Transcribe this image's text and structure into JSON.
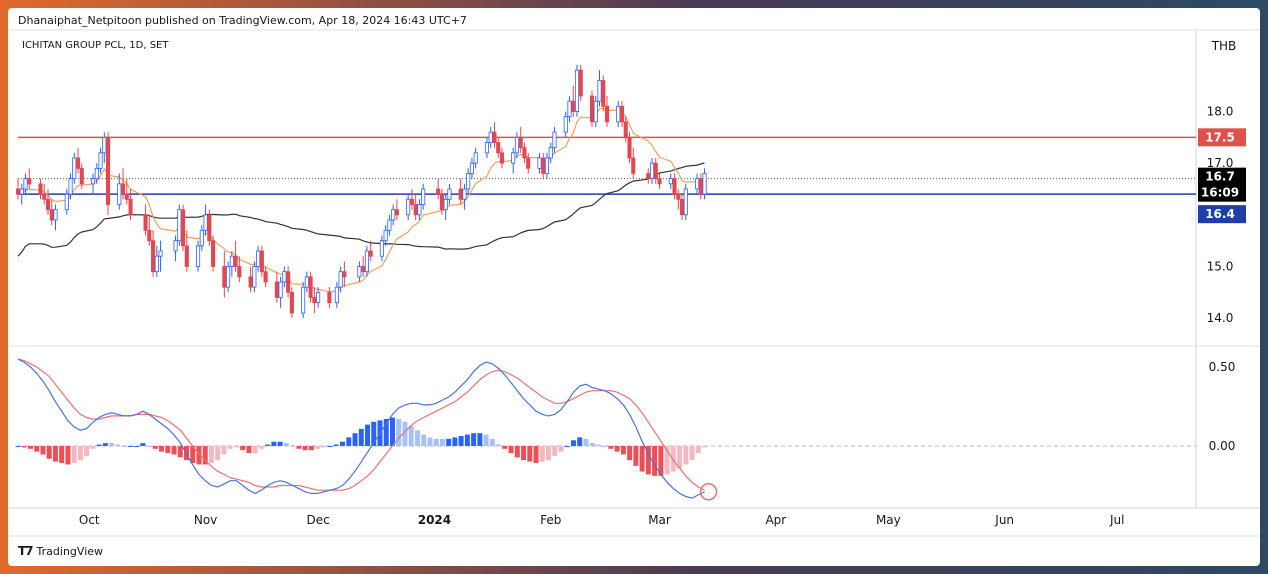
{
  "header": {
    "publisher_line": "Dhanaiphat_Netpitoon published on TradingView.com, Apr 18, 2024 16:43 UTC+7"
  },
  "symbol_title": "ICHITAN GROUP PCL, 1D, SET",
  "currency": "THB",
  "footer": {
    "brand": "TradingView",
    "logo_icon": "tradingview-logo-icon"
  },
  "colors": {
    "up": "#2962ff",
    "down": "#e5474f",
    "ema_short": "#f0a060",
    "ma_long": "#333333",
    "resistance": "#e0504a",
    "support": "#1f3fa8",
    "macd_line": "#4a72d8",
    "signal_line": "#e57373",
    "hist_pos_strong": "#2962ff",
    "hist_pos_weak": "#a7c0f5",
    "hist_neg_strong": "#ef4e55",
    "hist_neg_weak": "#f6b8c0"
  },
  "price_axis": {
    "ticks": [
      "18.0",
      "17.0",
      "15.0",
      "14.0"
    ],
    "range": [
      13.5,
      19.5
    ]
  },
  "price_tags": {
    "resistance": "17.5",
    "last": "16.7",
    "countdown": "16:09",
    "support": "16.4"
  },
  "macd_axis": {
    "ticks": [
      "0.50",
      "0.00"
    ],
    "range": [
      -0.38,
      0.62
    ]
  },
  "time_axis": {
    "labels": [
      "Oct",
      "Nov",
      "Dec",
      "2024",
      "Feb",
      "Mar",
      "Apr",
      "May",
      "Jun",
      "Jul"
    ]
  },
  "chart_data": {
    "type": "candlestick",
    "title": "ICHITAN GROUP PCL, 1D, SET",
    "x_range": [
      "2023-09-12",
      "2024-07-22"
    ],
    "levels": {
      "resistance": 17.5,
      "support": 16.4,
      "last_close": 16.7
    },
    "candles": [
      [
        "2023-09-12",
        16.5,
        16.7,
        16.3,
        16.4
      ],
      [
        "2023-09-13",
        16.4,
        16.6,
        16.2,
        16.5
      ],
      [
        "2023-09-14",
        16.5,
        16.8,
        16.4,
        16.7
      ],
      [
        "2023-09-15",
        16.7,
        16.9,
        16.5,
        16.6
      ],
      [
        "2023-09-18",
        16.6,
        16.7,
        16.3,
        16.4
      ],
      [
        "2023-09-19",
        16.4,
        16.6,
        16.2,
        16.3
      ],
      [
        "2023-09-20",
        16.3,
        16.5,
        16.0,
        16.1
      ],
      [
        "2023-09-21",
        16.1,
        16.3,
        15.8,
        15.9
      ],
      [
        "2023-09-22",
        15.9,
        16.2,
        15.7,
        16.1
      ],
      [
        "2023-09-25",
        16.1,
        16.5,
        16.0,
        16.4
      ],
      [
        "2023-09-26",
        16.4,
        16.8,
        16.3,
        16.7
      ],
      [
        "2023-09-27",
        16.7,
        17.2,
        16.6,
        17.1
      ],
      [
        "2023-09-28",
        17.1,
        17.3,
        16.8,
        16.9
      ],
      [
        "2023-09-29",
        16.9,
        17.0,
        16.5,
        16.6
      ],
      [
        "2023-10-02",
        16.6,
        16.8,
        16.4,
        16.7
      ],
      [
        "2023-10-03",
        16.7,
        17.0,
        16.6,
        16.9
      ],
      [
        "2023-10-04",
        16.9,
        17.3,
        16.8,
        17.2
      ],
      [
        "2023-10-05",
        17.2,
        17.6,
        17.0,
        17.5
      ],
      [
        "2023-10-06",
        17.5,
        17.6,
        16.0,
        16.2
      ],
      [
        "2023-10-09",
        16.2,
        16.8,
        16.1,
        16.6
      ],
      [
        "2023-10-10",
        16.6,
        16.9,
        16.3,
        16.4
      ],
      [
        "2023-10-11",
        16.4,
        16.7,
        16.2,
        16.3
      ],
      [
        "2023-10-12",
        16.3,
        16.5,
        15.9,
        16.0
      ],
      [
        "2023-10-16",
        16.0,
        16.2,
        15.6,
        15.7
      ],
      [
        "2023-10-17",
        15.7,
        16.0,
        15.4,
        15.5
      ],
      [
        "2023-10-18",
        15.5,
        15.7,
        14.8,
        14.9
      ],
      [
        "2023-10-19",
        14.9,
        15.4,
        14.8,
        15.2
      ],
      [
        "2023-10-20",
        15.2,
        15.5,
        14.9,
        15.3
      ],
      [
        "2023-10-24",
        15.3,
        15.6,
        15.1,
        15.5
      ],
      [
        "2023-10-25",
        15.5,
        16.2,
        15.4,
        16.1
      ],
      [
        "2023-10-26",
        16.1,
        16.2,
        15.3,
        15.4
      ],
      [
        "2023-10-27",
        15.4,
        15.7,
        14.9,
        15.0
      ],
      [
        "2023-10-30",
        15.0,
        15.5,
        14.9,
        15.4
      ],
      [
        "2023-10-31",
        15.4,
        15.8,
        15.3,
        15.7
      ],
      [
        "2023-11-01",
        15.7,
        16.2,
        15.6,
        16.0
      ],
      [
        "2023-11-02",
        16.0,
        16.1,
        15.4,
        15.5
      ],
      [
        "2023-11-03",
        15.5,
        15.6,
        14.9,
        15.0
      ],
      [
        "2023-11-06",
        15.0,
        15.3,
        14.4,
        14.6
      ],
      [
        "2023-11-07",
        14.6,
        15.1,
        14.5,
        15.0
      ],
      [
        "2023-11-08",
        15.0,
        15.3,
        14.8,
        15.2
      ],
      [
        "2023-11-09",
        15.2,
        15.5,
        14.9,
        15.0
      ],
      [
        "2023-11-10",
        15.0,
        15.2,
        14.7,
        14.8
      ],
      [
        "2023-11-13",
        14.8,
        15.0,
        14.5,
        14.6
      ],
      [
        "2023-11-14",
        14.6,
        15.1,
        14.5,
        15.0
      ],
      [
        "2023-11-15",
        15.0,
        15.4,
        14.9,
        15.3
      ],
      [
        "2023-11-16",
        15.3,
        15.4,
        14.8,
        14.9
      ],
      [
        "2023-11-17",
        14.9,
        15.0,
        14.6,
        14.7
      ],
      [
        "2023-11-20",
        14.7,
        14.9,
        14.3,
        14.4
      ],
      [
        "2023-11-21",
        14.4,
        14.8,
        14.2,
        14.7
      ],
      [
        "2023-11-22",
        14.7,
        15.0,
        14.6,
        14.9
      ],
      [
        "2023-11-23",
        14.9,
        15.0,
        14.4,
        14.5
      ],
      [
        "2023-11-24",
        14.5,
        14.6,
        14.0,
        14.1
      ],
      [
        "2023-11-27",
        14.1,
        14.7,
        14.0,
        14.6
      ],
      [
        "2023-11-28",
        14.6,
        14.9,
        14.5,
        14.8
      ],
      [
        "2023-11-29",
        14.8,
        14.9,
        14.3,
        14.4
      ],
      [
        "2023-11-30",
        14.4,
        14.6,
        14.1,
        14.3
      ],
      [
        "2023-12-01",
        14.3,
        14.6,
        14.2,
        14.5
      ],
      [
        "2023-12-04",
        14.5,
        14.6,
        14.2,
        14.3
      ],
      [
        "2023-12-06",
        14.3,
        14.7,
        14.2,
        14.6
      ],
      [
        "2023-12-07",
        14.6,
        15.0,
        14.5,
        14.9
      ],
      [
        "2023-12-08",
        14.9,
        15.1,
        14.6,
        14.8
      ],
      [
        "2023-12-12",
        14.8,
        15.1,
        14.7,
        15.0
      ],
      [
        "2023-12-13",
        15.0,
        15.2,
        14.8,
        14.9
      ],
      [
        "2023-12-14",
        14.9,
        15.4,
        14.8,
        15.3
      ],
      [
        "2023-12-15",
        15.3,
        15.5,
        15.1,
        15.2
      ],
      [
        "2023-12-18",
        15.2,
        15.6,
        15.1,
        15.5
      ],
      [
        "2023-12-19",
        15.5,
        15.8,
        15.4,
        15.7
      ],
      [
        "2023-12-20",
        15.7,
        16.0,
        15.6,
        15.9
      ],
      [
        "2023-12-21",
        15.9,
        16.2,
        15.8,
        16.1
      ],
      [
        "2023-12-22",
        16.1,
        16.3,
        15.9,
        16.0
      ],
      [
        "2023-12-25",
        16.0,
        16.4,
        15.9,
        16.3
      ],
      [
        "2023-12-26",
        16.3,
        16.5,
        16.1,
        16.2
      ],
      [
        "2023-12-27",
        16.2,
        16.4,
        15.9,
        16.0
      ],
      [
        "2023-12-28",
        16.0,
        16.3,
        15.9,
        16.2
      ],
      [
        "2023-12-29",
        16.2,
        16.6,
        16.1,
        16.5
      ],
      [
        "2024-01-02",
        16.5,
        16.7,
        16.3,
        16.4
      ],
      [
        "2024-01-03",
        16.4,
        16.5,
        16.0,
        16.1
      ],
      [
        "2024-01-04",
        16.1,
        16.4,
        15.9,
        16.3
      ],
      [
        "2024-01-05",
        16.3,
        16.6,
        16.2,
        16.5
      ],
      [
        "2024-01-08",
        16.5,
        16.7,
        16.2,
        16.3
      ],
      [
        "2024-01-09",
        16.3,
        16.6,
        16.1,
        16.5
      ],
      [
        "2024-01-10",
        16.5,
        16.9,
        16.4,
        16.8
      ],
      [
        "2024-01-11",
        16.8,
        17.1,
        16.7,
        17.0
      ],
      [
        "2024-01-12",
        17.0,
        17.3,
        16.9,
        17.2
      ],
      [
        "2024-01-15",
        17.2,
        17.5,
        17.1,
        17.4
      ],
      [
        "2024-01-16",
        17.4,
        17.7,
        17.3,
        17.6
      ],
      [
        "2024-01-17",
        17.6,
        17.8,
        17.3,
        17.4
      ],
      [
        "2024-01-18",
        17.4,
        17.5,
        17.1,
        17.2
      ],
      [
        "2024-01-19",
        17.2,
        17.3,
        16.9,
        17.0
      ],
      [
        "2024-01-22",
        17.0,
        17.3,
        16.8,
        17.2
      ],
      [
        "2024-01-23",
        17.2,
        17.6,
        17.1,
        17.5
      ],
      [
        "2024-01-24",
        17.5,
        17.7,
        17.2,
        17.3
      ],
      [
        "2024-01-25",
        17.3,
        17.4,
        17.0,
        17.1
      ],
      [
        "2024-01-26",
        17.1,
        17.2,
        16.8,
        16.9
      ],
      [
        "2024-01-29",
        16.9,
        17.2,
        16.8,
        17.1
      ],
      [
        "2024-01-30",
        17.1,
        17.2,
        16.7,
        16.8
      ],
      [
        "2024-01-31",
        16.8,
        17.2,
        16.7,
        17.1
      ],
      [
        "2024-02-01",
        17.1,
        17.4,
        17.0,
        17.3
      ],
      [
        "2024-02-02",
        17.3,
        17.7,
        17.2,
        17.6
      ],
      [
        "2024-02-05",
        17.6,
        18.0,
        17.5,
        17.9
      ],
      [
        "2024-02-06",
        17.9,
        18.3,
        17.8,
        18.2
      ],
      [
        "2024-02-07",
        18.2,
        18.5,
        17.9,
        18.0
      ],
      [
        "2024-02-08",
        18.0,
        18.9,
        17.9,
        18.8
      ],
      [
        "2024-02-09",
        18.8,
        18.9,
        18.2,
        18.3
      ],
      [
        "2024-02-12",
        18.3,
        18.4,
        17.7,
        17.8
      ],
      [
        "2024-02-13",
        17.8,
        18.3,
        17.7,
        18.2
      ],
      [
        "2024-02-14",
        18.2,
        18.8,
        18.1,
        18.6
      ],
      [
        "2024-02-15",
        18.6,
        18.7,
        18.0,
        18.1
      ],
      [
        "2024-02-16",
        18.1,
        18.3,
        17.7,
        17.8
      ],
      [
        "2024-02-19",
        17.8,
        18.2,
        17.7,
        18.1
      ],
      [
        "2024-02-20",
        18.1,
        18.2,
        17.7,
        17.8
      ],
      [
        "2024-02-21",
        17.8,
        17.9,
        17.4,
        17.5
      ],
      [
        "2024-02-22",
        17.5,
        17.6,
        17.0,
        17.1
      ],
      [
        "2024-02-23",
        17.1,
        17.3,
        16.7,
        16.8
      ],
      [
        "2024-02-27",
        16.8,
        16.9,
        16.6,
        16.7
      ],
      [
        "2024-02-28",
        16.7,
        17.1,
        16.6,
        17.0
      ],
      [
        "2024-02-29",
        17.0,
        17.1,
        16.6,
        16.7
      ],
      [
        "2024-03-01",
        16.7,
        16.8,
        16.5,
        16.6
      ],
      [
        "2024-03-04",
        16.6,
        16.8,
        16.5,
        16.7
      ],
      [
        "2024-03-05",
        16.7,
        16.8,
        16.3,
        16.4
      ],
      [
        "2024-03-06",
        16.4,
        16.5,
        16.1,
        16.3
      ],
      [
        "2024-03-07",
        16.3,
        16.4,
        15.9,
        16.0
      ],
      [
        "2024-03-08",
        16.0,
        16.6,
        15.9,
        16.5
      ],
      [
        "2024-03-11",
        16.5,
        16.8,
        16.4,
        16.7
      ],
      [
        "2024-03-12",
        16.7,
        16.8,
        16.3,
        16.4
      ],
      [
        "2024-03-13",
        16.4,
        16.9,
        16.3,
        16.8
      ]
    ],
    "ma_long_note": "long moving average (dark line)",
    "ema_short_note": "short moving average (orange line)",
    "macd": {
      "macd_line": [
        0.55,
        0.53,
        0.5,
        0.46,
        0.41,
        0.35,
        0.28,
        0.22,
        0.16,
        0.12,
        0.1,
        0.11,
        0.15,
        0.18,
        0.2,
        0.21,
        0.2,
        0.19,
        0.19,
        0.2,
        0.22,
        0.2,
        0.17,
        0.14,
        0.11,
        0.07,
        0.02,
        -0.05,
        -0.12,
        -0.18,
        -0.22,
        -0.25,
        -0.26,
        -0.24,
        -0.22,
        -0.22,
        -0.25,
        -0.28,
        -0.3,
        -0.28,
        -0.25,
        -0.23,
        -0.22,
        -0.23,
        -0.25,
        -0.27,
        -0.29,
        -0.3,
        -0.3,
        -0.29,
        -0.28,
        -0.27,
        -0.25,
        -0.21,
        -0.16,
        -0.1,
        -0.04,
        0.02,
        0.08,
        0.14,
        0.2,
        0.24,
        0.26,
        0.27,
        0.27,
        0.26,
        0.26,
        0.27,
        0.29,
        0.31,
        0.34,
        0.38,
        0.42,
        0.47,
        0.51,
        0.53,
        0.52,
        0.49,
        0.45,
        0.4,
        0.35,
        0.3,
        0.26,
        0.22,
        0.2,
        0.19,
        0.2,
        0.23,
        0.28,
        0.34,
        0.38,
        0.39,
        0.37,
        0.36,
        0.35,
        0.33,
        0.3,
        0.26,
        0.2,
        0.12,
        0.03,
        -0.05,
        -0.12,
        -0.18,
        -0.23,
        -0.27,
        -0.3,
        -0.32,
        -0.33,
        -0.31,
        -0.29
      ],
      "signal_line": [
        0.55,
        0.54,
        0.52,
        0.5,
        0.47,
        0.44,
        0.39,
        0.34,
        0.29,
        0.24,
        0.2,
        0.18,
        0.17,
        0.17,
        0.18,
        0.19,
        0.19,
        0.19,
        0.19,
        0.2,
        0.2,
        0.2,
        0.19,
        0.18,
        0.16,
        0.13,
        0.1,
        0.05,
        0.0,
        -0.05,
        -0.09,
        -0.13,
        -0.16,
        -0.18,
        -0.2,
        -0.21,
        -0.22,
        -0.23,
        -0.25,
        -0.26,
        -0.26,
        -0.26,
        -0.25,
        -0.25,
        -0.25,
        -0.25,
        -0.26,
        -0.27,
        -0.28,
        -0.28,
        -0.28,
        -0.28,
        -0.28,
        -0.27,
        -0.25,
        -0.22,
        -0.19,
        -0.15,
        -0.1,
        -0.05,
        0.0,
        0.05,
        0.09,
        0.13,
        0.16,
        0.18,
        0.2,
        0.22,
        0.24,
        0.26,
        0.28,
        0.31,
        0.34,
        0.38,
        0.42,
        0.45,
        0.47,
        0.48,
        0.47,
        0.45,
        0.43,
        0.4,
        0.37,
        0.34,
        0.31,
        0.29,
        0.27,
        0.27,
        0.28,
        0.3,
        0.32,
        0.34,
        0.35,
        0.35,
        0.35,
        0.35,
        0.34,
        0.32,
        0.3,
        0.26,
        0.21,
        0.15,
        0.09,
        0.03,
        -0.03,
        -0.09,
        -0.14,
        -0.19,
        -0.23,
        -0.26,
        -0.28
      ]
    }
  }
}
